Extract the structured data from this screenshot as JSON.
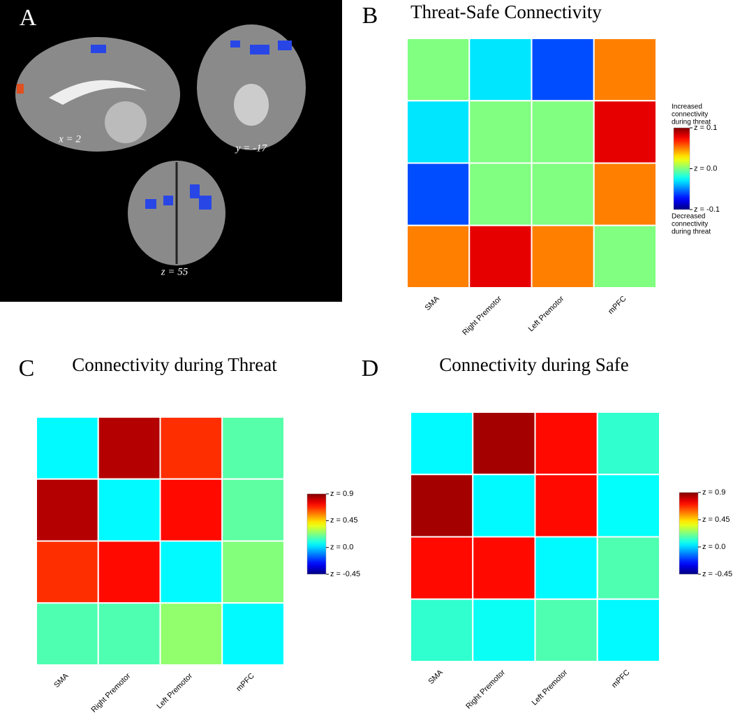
{
  "brain_panel": {
    "panel_label": "A",
    "slice_labels": [
      "x = 2",
      "y = -17",
      "z = 55"
    ]
  },
  "chart_data": [
    {
      "type": "heatmap",
      "panel_label": "B",
      "title": "Threat-Safe Connectivity",
      "categories": [
        "SMA",
        "Right Premotor",
        "Left Premotor",
        "mPFC"
      ],
      "values": [
        [
          0,
          -0.03,
          -0.06,
          0.05
        ],
        [
          -0.03,
          0,
          0,
          0.08
        ],
        [
          -0.06,
          0,
          0,
          0.05
        ],
        [
          0.05,
          0.08,
          0.05,
          0
        ]
      ],
      "colormap": "jet",
      "clim": [
        -0.1,
        0.1
      ],
      "cticks": [
        {
          "value": 0.1,
          "label": "z = 0.1"
        },
        {
          "value": 0,
          "label": "z = 0.0"
        },
        {
          "value": -0.1,
          "label": "z = -0.1"
        }
      ],
      "colorbar_top_note": [
        "Increased",
        "connectivity",
        "during threat"
      ],
      "colorbar_bottom_note": [
        "Decreased",
        "connectivity",
        "during threat"
      ]
    },
    {
      "type": "heatmap",
      "panel_label": "C",
      "title": "Connectivity during Threat",
      "categories": [
        "SMA",
        "Right Premotor",
        "Left Premotor",
        "mPFC"
      ],
      "values": [
        [
          0.05,
          0.83,
          0.67,
          0.17
        ],
        [
          0.83,
          0.05,
          0.72,
          0.18
        ],
        [
          0.67,
          0.72,
          0.05,
          0.23
        ],
        [
          0.16,
          0.16,
          0.25,
          0.05
        ]
      ],
      "colormap": "jet",
      "clim": [
        -0.45,
        0.9
      ],
      "cticks": [
        {
          "value": 0.9,
          "label": "z = 0.9"
        },
        {
          "value": 0.45,
          "label": "z = 0.45"
        },
        {
          "value": 0,
          "label": "z = 0.0"
        },
        {
          "value": -0.45,
          "label": "z = -0.45"
        }
      ]
    },
    {
      "type": "heatmap",
      "panel_label": "D",
      "title": "Connectivity during Safe",
      "categories": [
        "SMA",
        "Right Premotor",
        "Left Premotor",
        "mPFC"
      ],
      "values": [
        [
          0.05,
          0.85,
          0.72,
          0.12
        ],
        [
          0.85,
          0.05,
          0.72,
          0.06
        ],
        [
          0.72,
          0.72,
          0.05,
          0.16
        ],
        [
          0.12,
          0.07,
          0.16,
          0.05
        ]
      ],
      "colormap": "jet",
      "clim": [
        -0.45,
        0.9
      ],
      "cticks": [
        {
          "value": 0.9,
          "label": "z = 0.9"
        },
        {
          "value": 0.45,
          "label": "z = 0.45"
        },
        {
          "value": 0,
          "label": "z = 0.0"
        },
        {
          "value": -0.45,
          "label": "z = -0.45"
        }
      ]
    }
  ]
}
